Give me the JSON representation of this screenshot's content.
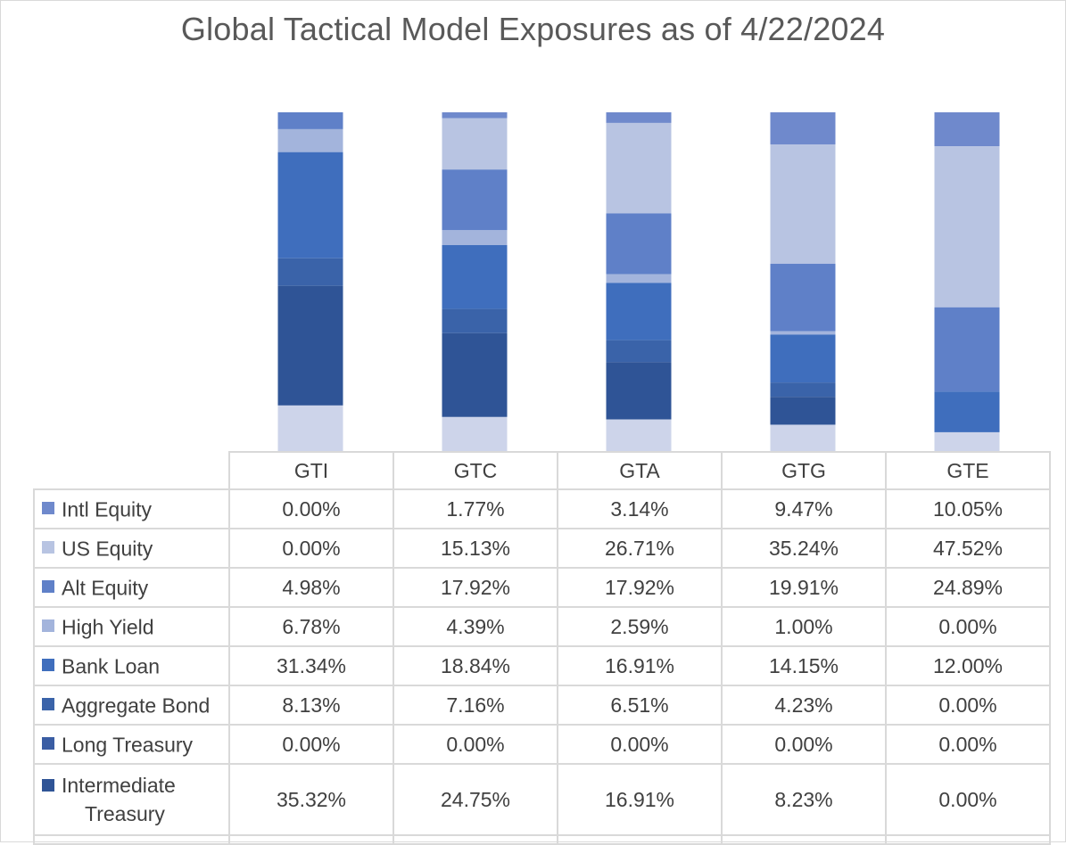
{
  "chart_data": {
    "type": "bar",
    "stacked": true,
    "title": "Global Tactical Model Exposures as of 4/22/2024",
    "categories": [
      "GTI",
      "GTC",
      "GTA",
      "GTG",
      "GTE"
    ],
    "unit": "%",
    "ylim": [
      0,
      100
    ],
    "legend_placement": "table-left",
    "series": [
      {
        "name": "Intl Equity",
        "color": "#6f89cc",
        "values": [
          0.0,
          1.77,
          3.14,
          9.47,
          10.05
        ]
      },
      {
        "name": "US Equity",
        "color": "#b8c4e2",
        "values": [
          0.0,
          15.13,
          26.71,
          35.24,
          47.52
        ]
      },
      {
        "name": "Alt Equity",
        "color": "#5f80c8",
        "values": [
          4.98,
          17.92,
          17.92,
          19.91,
          24.89
        ]
      },
      {
        "name": "High Yield",
        "color": "#a3b4dc",
        "values": [
          6.78,
          4.39,
          2.59,
          1.0,
          0.0
        ]
      },
      {
        "name": "Bank Loan",
        "color": "#3f6ebd",
        "values": [
          31.34,
          18.84,
          16.91,
          14.15,
          12.0
        ]
      },
      {
        "name": "Aggregate Bond",
        "color": "#3a63a9",
        "values": [
          8.13,
          7.16,
          6.51,
          4.23,
          0.0
        ]
      },
      {
        "name": "Long Treasury",
        "color": "#3a5da3",
        "values": [
          0.0,
          0.0,
          0.0,
          0.0,
          0.0
        ]
      },
      {
        "name": "Intermediate Treasury",
        "label_line1": "Intermediate",
        "label_line2": "Treasury",
        "color": "#2f5496",
        "values": [
          35.32,
          24.75,
          16.91,
          8.23,
          0.0
        ]
      }
    ],
    "table_values": [
      [
        "0.00%",
        "1.77%",
        "3.14%",
        "9.47%",
        "10.05%"
      ],
      [
        "0.00%",
        "15.13%",
        "26.71%",
        "35.24%",
        "47.52%"
      ],
      [
        "4.98%",
        "17.92%",
        "17.92%",
        "19.91%",
        "24.89%"
      ],
      [
        "6.78%",
        "4.39%",
        "2.59%",
        "1.00%",
        "0.00%"
      ],
      [
        "31.34%",
        "18.84%",
        "16.91%",
        "14.15%",
        "12.00%"
      ],
      [
        "8.13%",
        "7.16%",
        "6.51%",
        "4.23%",
        "0.00%"
      ],
      [
        "0.00%",
        "0.00%",
        "0.00%",
        "0.00%",
        "0.00%"
      ],
      [
        "35.32%",
        "24.75%",
        "16.91%",
        "8.23%",
        "0.00%"
      ]
    ],
    "remainder_color": "#cdd4ea"
  }
}
